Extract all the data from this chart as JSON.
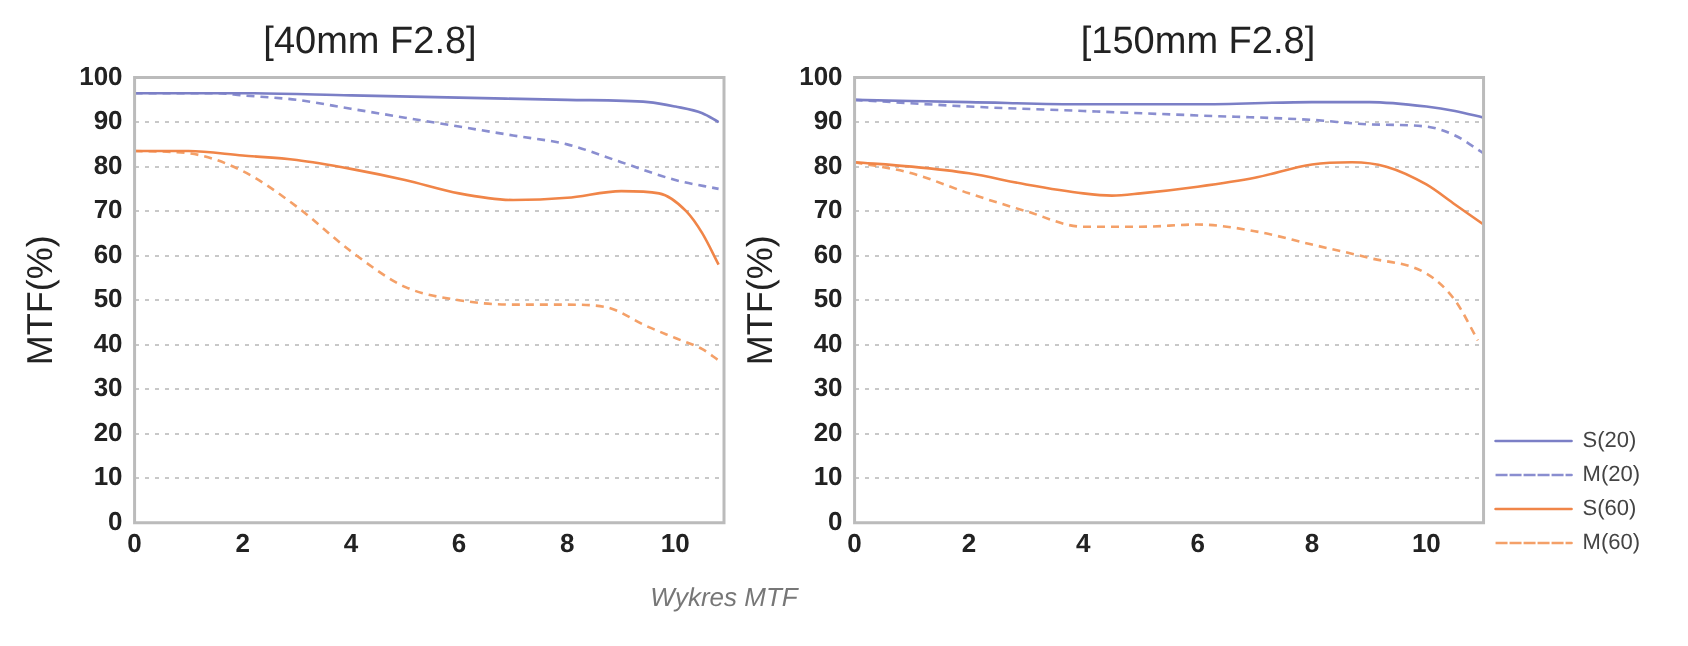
{
  "chart_data": [
    {
      "type": "line",
      "title": "[40mm F2.8]",
      "ylabel": "MTF(%)",
      "xlim": [
        0,
        10.9
      ],
      "xticks": [
        0,
        2,
        4,
        6,
        8,
        10
      ],
      "ylim": [
        0,
        100
      ],
      "yticks": [
        0,
        10,
        20,
        30,
        40,
        50,
        60,
        70,
        80,
        90,
        100
      ],
      "grid": "y",
      "legend": false,
      "marker": "none",
      "annotations": [
        "Wykres MTF"
      ],
      "series": [
        {
          "color": "#7b7fc6",
          "line_style": "solid",
          "x": [
            0,
            2,
            4,
            6,
            8,
            9.5,
            10,
            10.5,
            10.8
          ],
          "values": [
            96.5,
            96.5,
            96,
            95.5,
            95,
            94.5,
            93.5,
            92,
            90
          ]
        },
        {
          "color": "#8a8ed0",
          "line_style": "dashed",
          "x": [
            0,
            1.5,
            2,
            3,
            4,
            5,
            6,
            7,
            8,
            9,
            10,
            10.8
          ],
          "values": [
            96.5,
            96.5,
            96,
            95,
            93,
            91,
            89,
            87,
            85,
            81,
            77,
            75
          ]
        },
        {
          "color": "#f08548",
          "line_style": "solid",
          "x": [
            0,
            1,
            2,
            3,
            4,
            5,
            6,
            7,
            8,
            9,
            9.7,
            10.2,
            10.5,
            10.8
          ],
          "values": [
            83.5,
            83.5,
            82.5,
            81.5,
            79.5,
            77,
            74,
            72.5,
            73,
            74.5,
            74,
            70,
            65,
            58
          ]
        },
        {
          "color": "#f4a068",
          "line_style": "dashed",
          "x": [
            0,
            1,
            2,
            3,
            4,
            5,
            6,
            7,
            8,
            8.7,
            9.5,
            10,
            10.5,
            10.8
          ],
          "values": [
            83.5,
            83,
            79,
            71,
            61,
            53,
            50,
            49,
            49,
            48.5,
            44,
            41.5,
            39,
            36.5
          ]
        }
      ]
    },
    {
      "type": "line",
      "title": "[150mm F2.8]",
      "ylabel": "MTF(%)",
      "xlim": [
        0,
        11
      ],
      "xticks": [
        0,
        2,
        4,
        6,
        8,
        10
      ],
      "ylim": [
        0,
        100
      ],
      "yticks": [
        0,
        10,
        20,
        30,
        40,
        50,
        60,
        70,
        80,
        90,
        100
      ],
      "grid": "y",
      "legend": "right",
      "marker": "none",
      "series": [
        {
          "name": "S(20)",
          "color": "#7b7fc6",
          "line_style": "solid",
          "x": [
            0,
            2,
            4,
            6,
            8,
            9,
            10,
            10.5,
            11
          ],
          "values": [
            95,
            94.5,
            94,
            94,
            94.5,
            94.5,
            93.5,
            92.5,
            91
          ]
        },
        {
          "name": "M(20)",
          "color": "#8a8ed0",
          "line_style": "dashed",
          "x": [
            0,
            2,
            4,
            6,
            8,
            9,
            10,
            10.5,
            11
          ],
          "values": [
            95,
            93.5,
            92.5,
            91.5,
            90.5,
            89.5,
            89,
            87,
            83
          ]
        },
        {
          "name": "S(60)",
          "color": "#f08548",
          "line_style": "solid",
          "x": [
            0,
            1,
            2,
            3,
            4,
            4.5,
            5,
            6,
            7,
            8,
            8.7,
            9.3,
            10,
            10.5,
            11
          ],
          "values": [
            81,
            80,
            78.5,
            76,
            74,
            73.5,
            74,
            75.5,
            77.5,
            80.5,
            81,
            80,
            76,
            71.5,
            67
          ]
        },
        {
          "name": "M(60)",
          "color": "#f4a068",
          "line_style": "dashed",
          "x": [
            0,
            1,
            2,
            3,
            4,
            5,
            6,
            7,
            8,
            9,
            10,
            10.5,
            10.9
          ],
          "values": [
            81,
            78.5,
            74,
            70,
            66.5,
            66.5,
            67,
            65.5,
            62.5,
            59.5,
            56,
            50,
            41
          ]
        }
      ]
    }
  ]
}
